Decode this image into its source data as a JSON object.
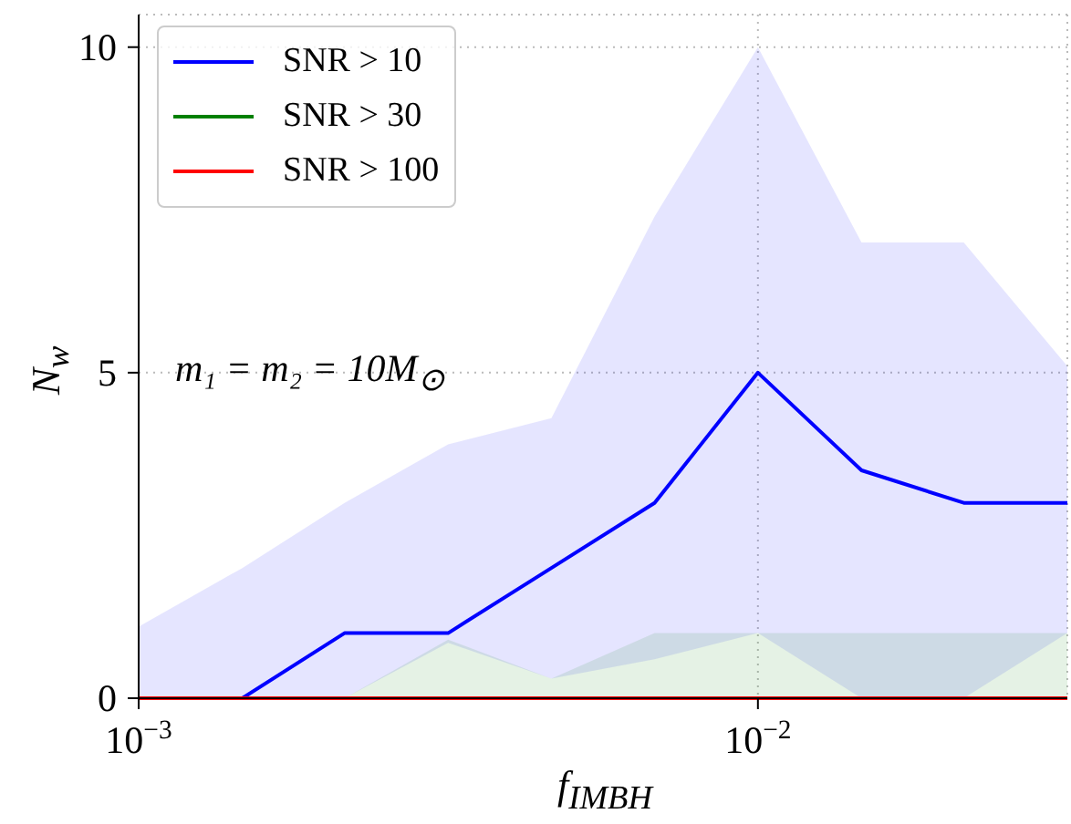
{
  "chart_data": {
    "type": "line",
    "xlabel": "f$_{IMBH}$",
    "ylabel": "N$_{w}$",
    "annotations": [
      "m₁ = m₂ = 10M$_{⊙}$"
    ],
    "x": [
      0.001,
      0.00147,
      0.00215,
      0.00316,
      0.00464,
      0.00681,
      0.01,
      0.0147,
      0.0215,
      0.0316
    ],
    "series": [
      {
        "name": "SNR > 10",
        "color": "#0000ff",
        "values": [
          0,
          0,
          1,
          1,
          2,
          3,
          5,
          3.5,
          3,
          3
        ],
        "lower": [
          0,
          0,
          0,
          0.85,
          0.3,
          0.6,
          1,
          0,
          0,
          1
        ],
        "upper": [
          1.1,
          2,
          3,
          3.9,
          4.3,
          7.4,
          10,
          7,
          7,
          5.1
        ]
      },
      {
        "name": "SNR > 30",
        "color": "#008000",
        "values": [
          null,
          null,
          null,
          null,
          null,
          null,
          null,
          null,
          null,
          null
        ],
        "lower": [
          0,
          0,
          0,
          0,
          0,
          0,
          0,
          0,
          0,
          0
        ],
        "upper": [
          0,
          0,
          0,
          0.9,
          0.3,
          1,
          1,
          1,
          1,
          1
        ]
      },
      {
        "name": "SNR > 100",
        "color": "#ff0000",
        "values": [
          0,
          0,
          0,
          0,
          0,
          0,
          0,
          0,
          0,
          0
        ]
      }
    ],
    "log": "x",
    "xlim": [
      0.001,
      0.0316
    ],
    "xticks": [
      {
        "value": 0.001,
        "label": "10$^{−3}$"
      },
      {
        "value": 0.01,
        "label": "10$^{−2}$"
      }
    ],
    "ylim": [
      0,
      10.5
    ],
    "yticks": [
      0,
      5,
      10
    ],
    "grid": true,
    "legend": "top left"
  }
}
